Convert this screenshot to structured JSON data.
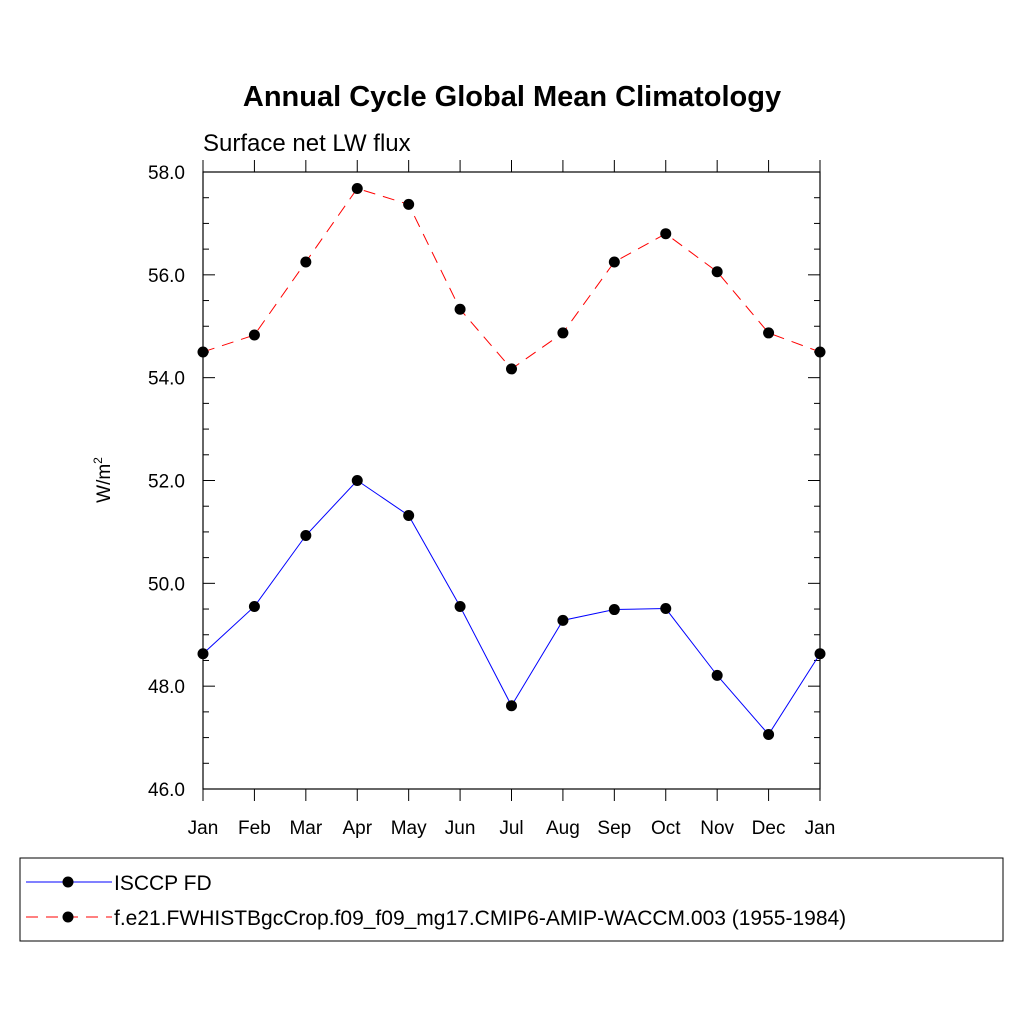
{
  "chart_data": {
    "type": "line",
    "title": "Annual Cycle Global Mean Climatology",
    "subtitle": "Surface net LW flux",
    "xlabel": "",
    "ylabel": "W/m",
    "ylabel_superscript": "2",
    "ylim": [
      46.0,
      58.0
    ],
    "yticks": [
      "46.0",
      "48.0",
      "50.0",
      "52.0",
      "54.0",
      "56.0",
      "58.0"
    ],
    "categories": [
      "Jan",
      "Feb",
      "Mar",
      "Apr",
      "May",
      "Jun",
      "Jul",
      "Aug",
      "Sep",
      "Oct",
      "Nov",
      "Dec",
      "Jan"
    ],
    "grid": false,
    "legend_position": "bottom",
    "series": [
      {
        "name": "ISCCP FD",
        "color": "#0000ff",
        "line_style": "solid",
        "marker": "filled-circle",
        "values": [
          48.63,
          49.55,
          50.93,
          52.0,
          51.32,
          49.55,
          47.62,
          49.28,
          49.49,
          49.51,
          48.21,
          47.06,
          48.63
        ]
      },
      {
        "name": "f.e21.FWHISTBgcCrop.f09_f09_mg17.CMIP6-AMIP-WACCM.003 (1955-1984)",
        "color": "#ff0000",
        "line_style": "dashed",
        "marker": "filled-circle",
        "values": [
          54.5,
          54.83,
          56.25,
          57.68,
          57.37,
          55.33,
          54.17,
          54.87,
          56.25,
          56.8,
          56.06,
          54.87,
          54.5
        ]
      }
    ]
  }
}
